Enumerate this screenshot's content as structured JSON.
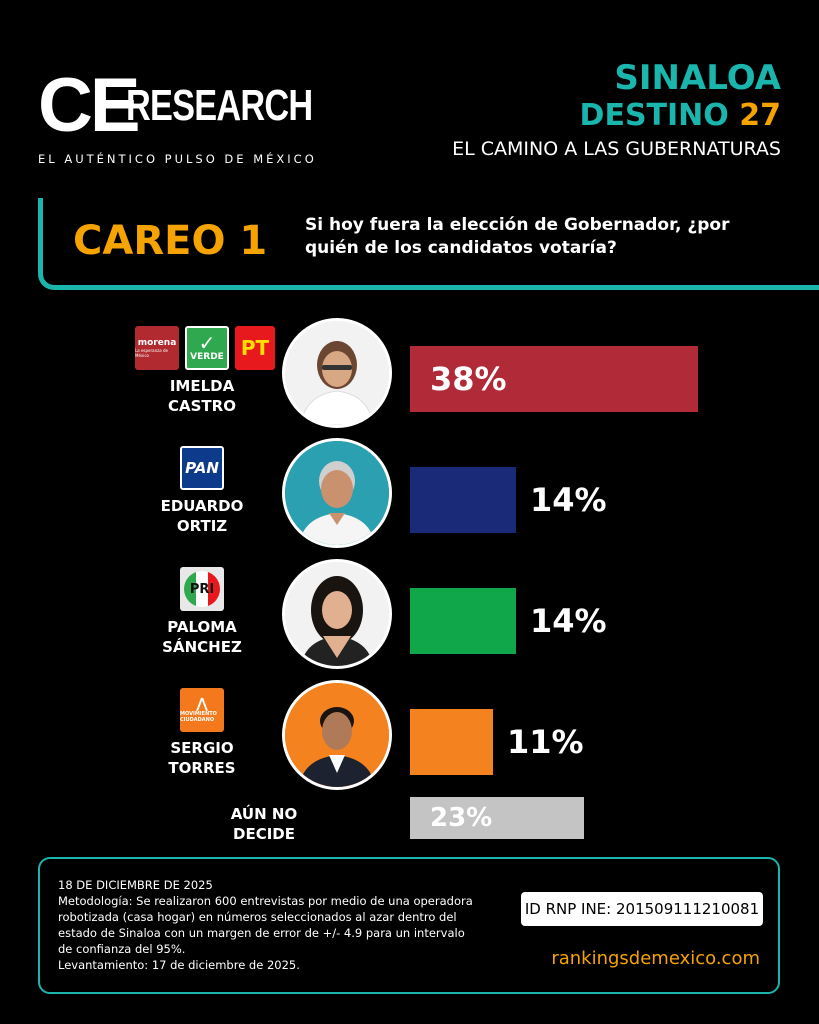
{
  "brand": {
    "logo_ce": "CE",
    "logo_research": "RESEARCH",
    "tagline": "EL AUTÉNTICO PULSO DE MÉXICO"
  },
  "header": {
    "title1": "SINALOA",
    "title2_text": "DESTINO",
    "title2_num": "27",
    "subtitle": "EL CAMINO A LAS GUBERNATURAS"
  },
  "careo": {
    "label": "CAREO 1",
    "question": "Si hoy fuera la elección de Gobernador, ¿por quién de los candidatos votaría?"
  },
  "parties": {
    "morena": "morena",
    "morena_small": "La esperanza de México",
    "verde": "VERDE",
    "pt": "PT",
    "pan": "PAN",
    "pri": "PRI",
    "mc": "MOVIMIENTO CIUDADANO"
  },
  "candidates": [
    {
      "name_line1": "IMELDA",
      "name_line2": "CASTRO"
    },
    {
      "name_line1": "EDUARDO",
      "name_line2": "ORTIZ"
    },
    {
      "name_line1": "PALOMA",
      "name_line2": "SÁNCHEZ"
    },
    {
      "name_line1": "SERGIO",
      "name_line2": "TORRES"
    }
  ],
  "undecided": {
    "line1": "AÚN NO",
    "line2": "DECIDE"
  },
  "chart_data": {
    "type": "bar",
    "orientation": "horizontal",
    "categories": [
      "IMELDA CASTRO",
      "EDUARDO ORTIZ",
      "PALOMA SÁNCHEZ",
      "SERGIO TORRES",
      "AÚN NO DECIDE"
    ],
    "values": [
      38,
      14,
      14,
      11,
      23
    ],
    "labels": [
      "38%",
      "14%",
      "14%",
      "11%",
      "23%"
    ],
    "colors": [
      "#b02a38",
      "#1b2a78",
      "#10a64a",
      "#f3821f",
      "#c4c4c4"
    ],
    "unit": "%",
    "xlim": [
      0,
      38
    ],
    "grid": false,
    "legend": "none"
  },
  "footer": {
    "date": "18 DE DICIEMBRE DE 2025",
    "methodology": "Metodología: Se realizaron 600 entrevistas por medio de una operadora robotizada (casa hogar) en números seleccionados al azar dentro del estado de Sinaloa con un margen de error de +/- 4.9 para un intervalo de confianza del 95%.",
    "fieldwork": "Levantamiento: 17 de diciembre de 2025.",
    "rnp": "ID RNP INE: 201509111210081",
    "website": "rankingsdemexico.com"
  }
}
